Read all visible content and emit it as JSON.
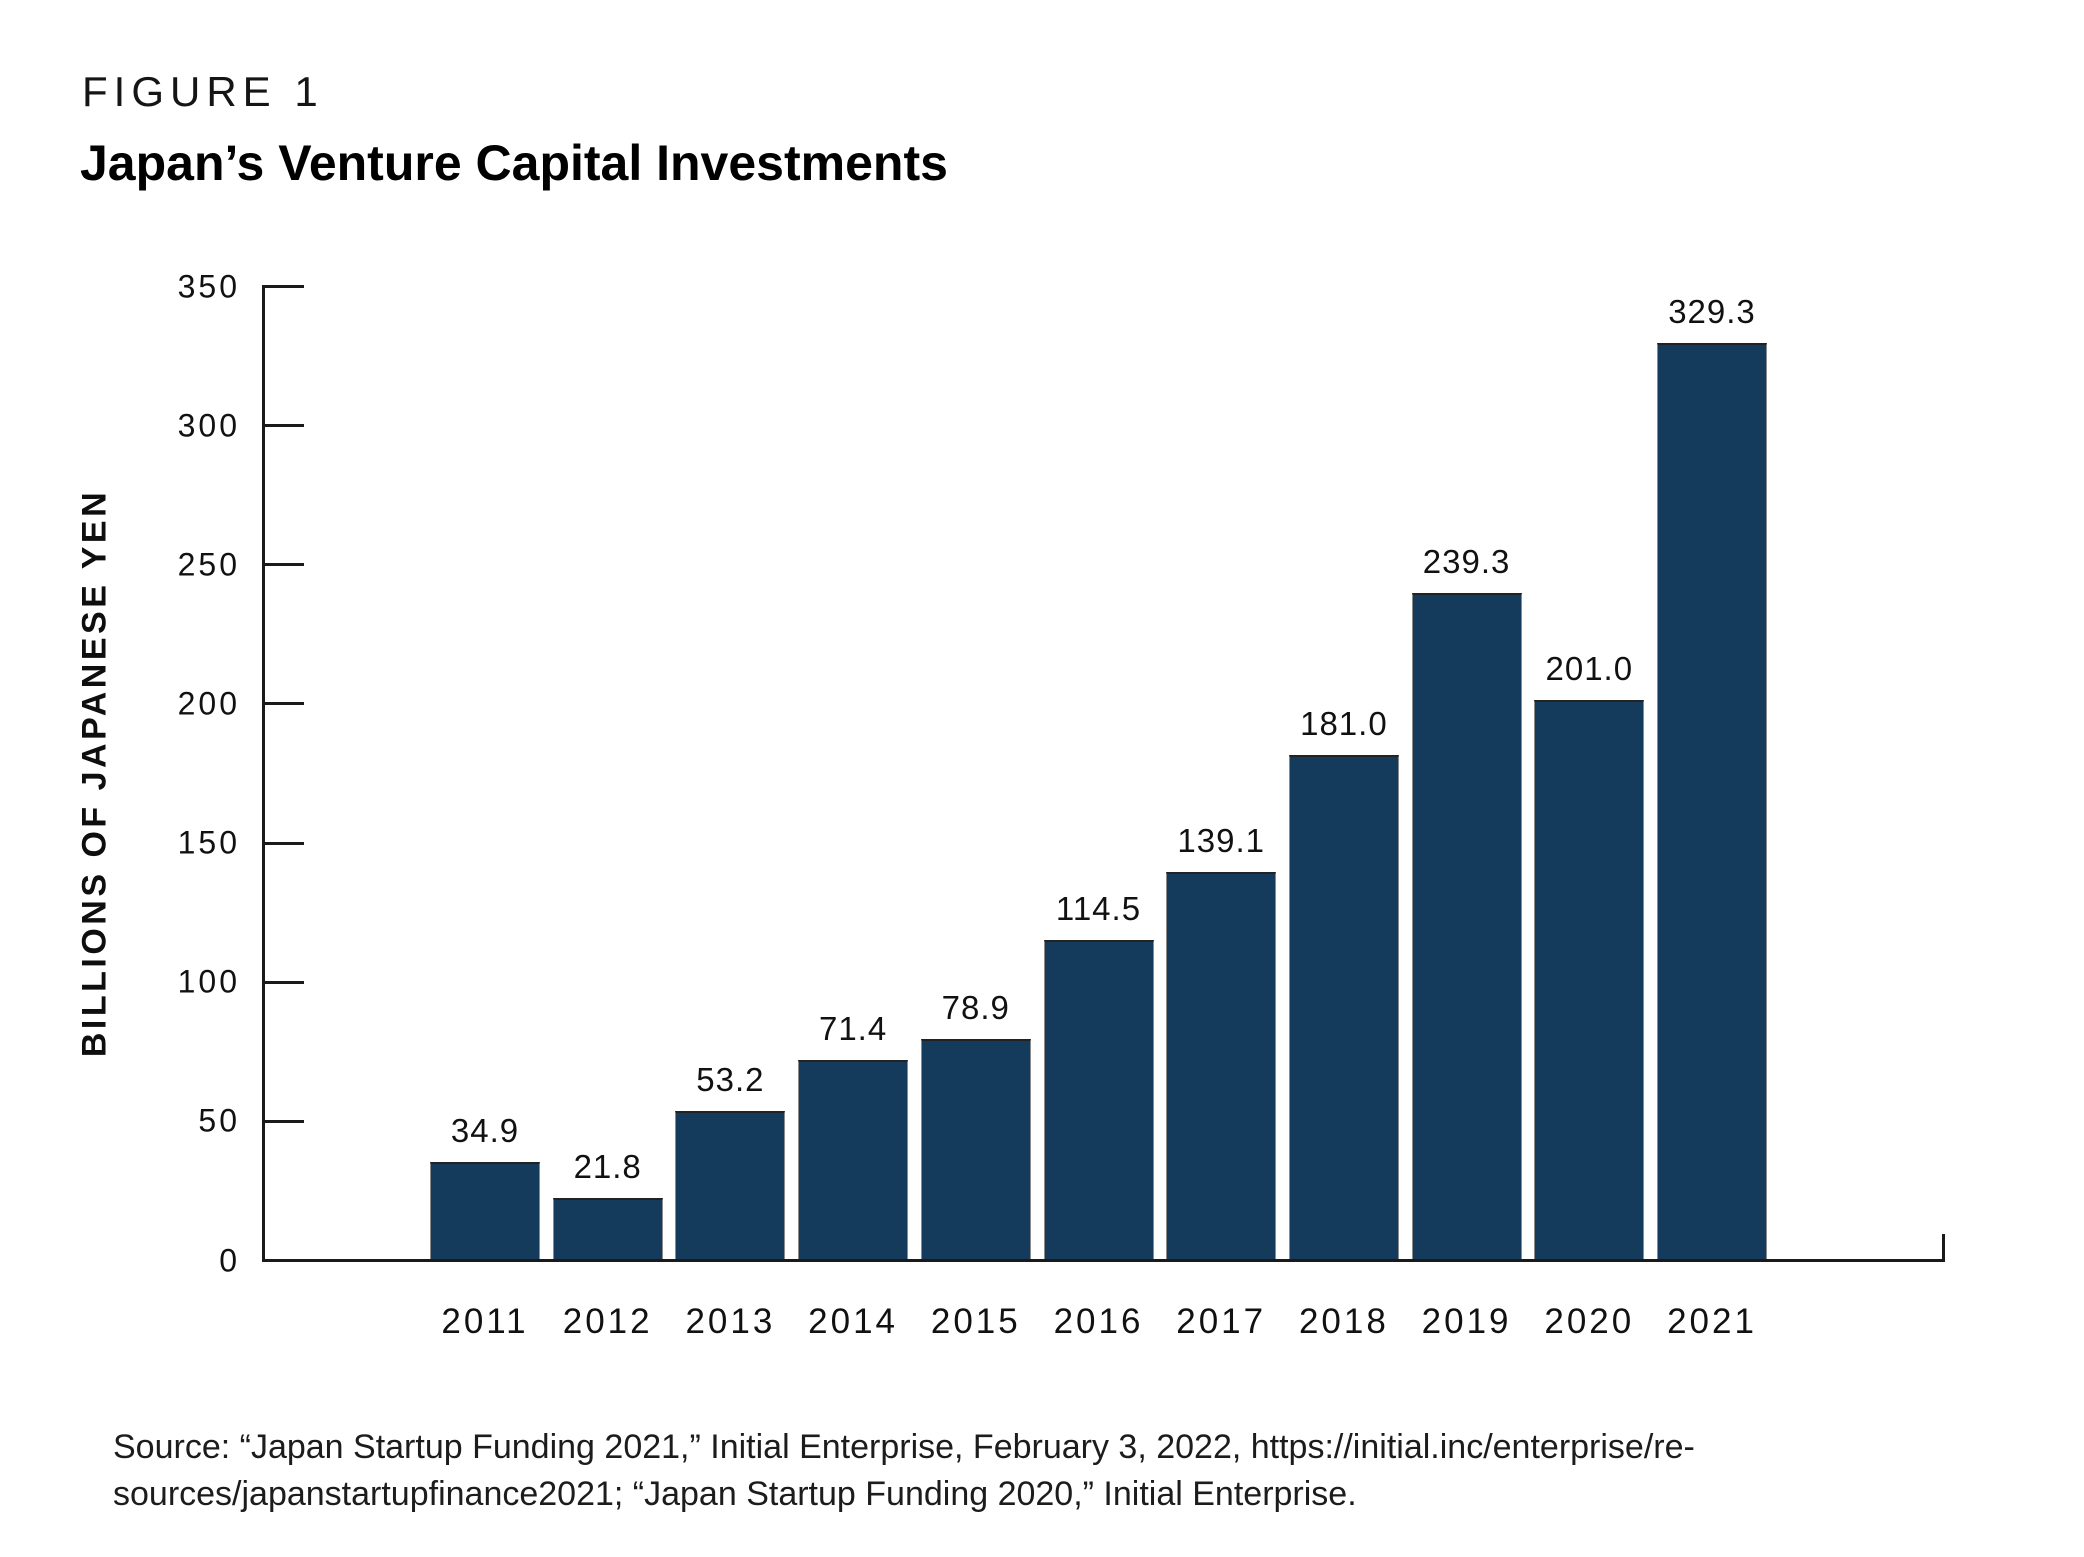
{
  "figure": {
    "label": "FIGURE 1",
    "title": "Japan’s Venture Capital Investments"
  },
  "chart_data": {
    "type": "bar",
    "title": "Japan’s Venture Capital Investments",
    "categories": [
      "2011",
      "2012",
      "2013",
      "2014",
      "2015",
      "2016",
      "2017",
      "2018",
      "2019",
      "2020",
      "2021"
    ],
    "values": [
      34.9,
      21.8,
      53.2,
      71.4,
      78.9,
      114.5,
      139.1,
      181.0,
      239.3,
      201.0,
      329.3
    ],
    "value_labels": [
      "34.9",
      "21.8",
      "53.2",
      "71.4",
      "78.9",
      "114.5",
      "139.1",
      "181.0",
      "239.3",
      "201.0",
      "329.3"
    ],
    "xlabel": "",
    "ylabel": "BILLIONS OF JAPANESE YEN",
    "ylim": [
      0,
      350
    ],
    "yticks": [
      0,
      50,
      100,
      150,
      200,
      250,
      300,
      350
    ],
    "grid": false,
    "legend": false,
    "bar_color": "#143a5c",
    "axis_color": "#1a1a1a"
  },
  "source": {
    "lines": [
      "Source: “Japan Startup Funding 2021,” Initial Enterprise, February 3, 2022, https://initial.inc/enterprise/re-",
      "sources/japanstartupfinance2021; “Japan Startup Funding 2020,” Initial Enterprise."
    ]
  }
}
